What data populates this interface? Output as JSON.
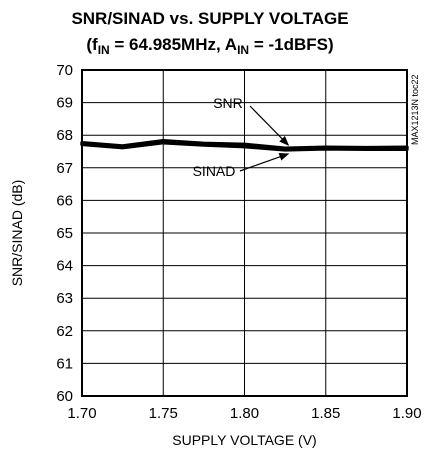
{
  "chart_data": {
    "type": "line",
    "title_line1": "SNR/SINAD vs. SUPPLY VOLTAGE",
    "title_line2": {
      "open": "(f",
      "fsub": "IN",
      "fmid": " = 64.985MHz, A",
      "asub": "IN",
      "close": " = -1dBFS)"
    },
    "xlabel": "SUPPLY VOLTAGE (V)",
    "ylabel": "SNR/SINAD (dB)",
    "xlim": [
      1.7,
      1.9
    ],
    "ylim": [
      60,
      70
    ],
    "xticks": [
      1.7,
      1.75,
      1.8,
      1.85,
      1.9
    ],
    "xtick_labels": [
      "1.70",
      "1.75",
      "1.80",
      "1.85",
      "1.90"
    ],
    "yticks": [
      60,
      61,
      62,
      63,
      64,
      65,
      66,
      67,
      68,
      69,
      70
    ],
    "ytick_labels": [
      "60",
      "61",
      "62",
      "63",
      "64",
      "65",
      "66",
      "67",
      "68",
      "69",
      "70"
    ],
    "grid": true,
    "x": [
      1.7,
      1.725,
      1.75,
      1.775,
      1.8,
      1.825,
      1.85,
      1.875,
      1.9
    ],
    "series": [
      {
        "name": "SNR",
        "values": [
          67.77,
          67.67,
          67.83,
          67.75,
          67.72,
          67.6,
          67.63,
          67.62,
          67.63
        ]
      },
      {
        "name": "SINAD",
        "values": [
          67.72,
          67.62,
          67.77,
          67.7,
          67.65,
          67.55,
          67.58,
          67.57,
          67.57
        ]
      }
    ],
    "annotations": [
      {
        "text": "SNR",
        "target_series": "SNR",
        "target_x": 1.827
      },
      {
        "text": "SINAD",
        "target_series": "SINAD",
        "target_x": 1.827
      }
    ],
    "figure_code": "MAX1213N toc22",
    "line_color": "#000000"
  }
}
